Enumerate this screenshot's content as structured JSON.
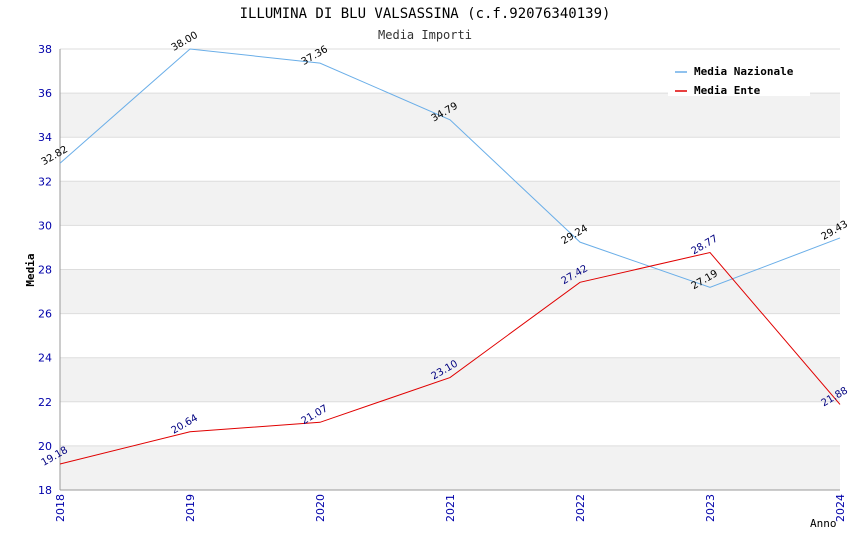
{
  "chart_data": {
    "type": "line",
    "title": "ILLUMINA DI BLU VALSASSINA (c.f.92076340139)",
    "subtitle": "Media Importi",
    "xlabel": "Anno",
    "ylabel": "Media",
    "x": [
      "2018",
      "2019",
      "2020",
      "2021",
      "2022",
      "2023",
      "2024"
    ],
    "ylim": [
      18,
      38
    ],
    "yticks": [
      "18",
      "20",
      "22",
      "24",
      "26",
      "28",
      "30",
      "32",
      "34",
      "36",
      "38"
    ],
    "grid": true,
    "legend_position": "top-right",
    "series": [
      {
        "name": "Media Nazionale",
        "color": "#6aaee8",
        "label_color": "#000000",
        "values": [
          32.82,
          38.0,
          37.36,
          34.79,
          29.24,
          27.19,
          29.43
        ],
        "labels": [
          "32.82",
          "38.00",
          "37.36",
          "34.79",
          "29.24",
          "27.19",
          "29.43"
        ]
      },
      {
        "name": "Media Ente",
        "color": "#e00000",
        "label_color": "#000080",
        "values": [
          19.18,
          20.64,
          21.07,
          23.1,
          27.42,
          28.77,
          21.88
        ],
        "labels": [
          "19.18",
          "20.64",
          "21.07",
          "23.10",
          "27.42",
          "28.77",
          "21.88"
        ]
      }
    ]
  }
}
